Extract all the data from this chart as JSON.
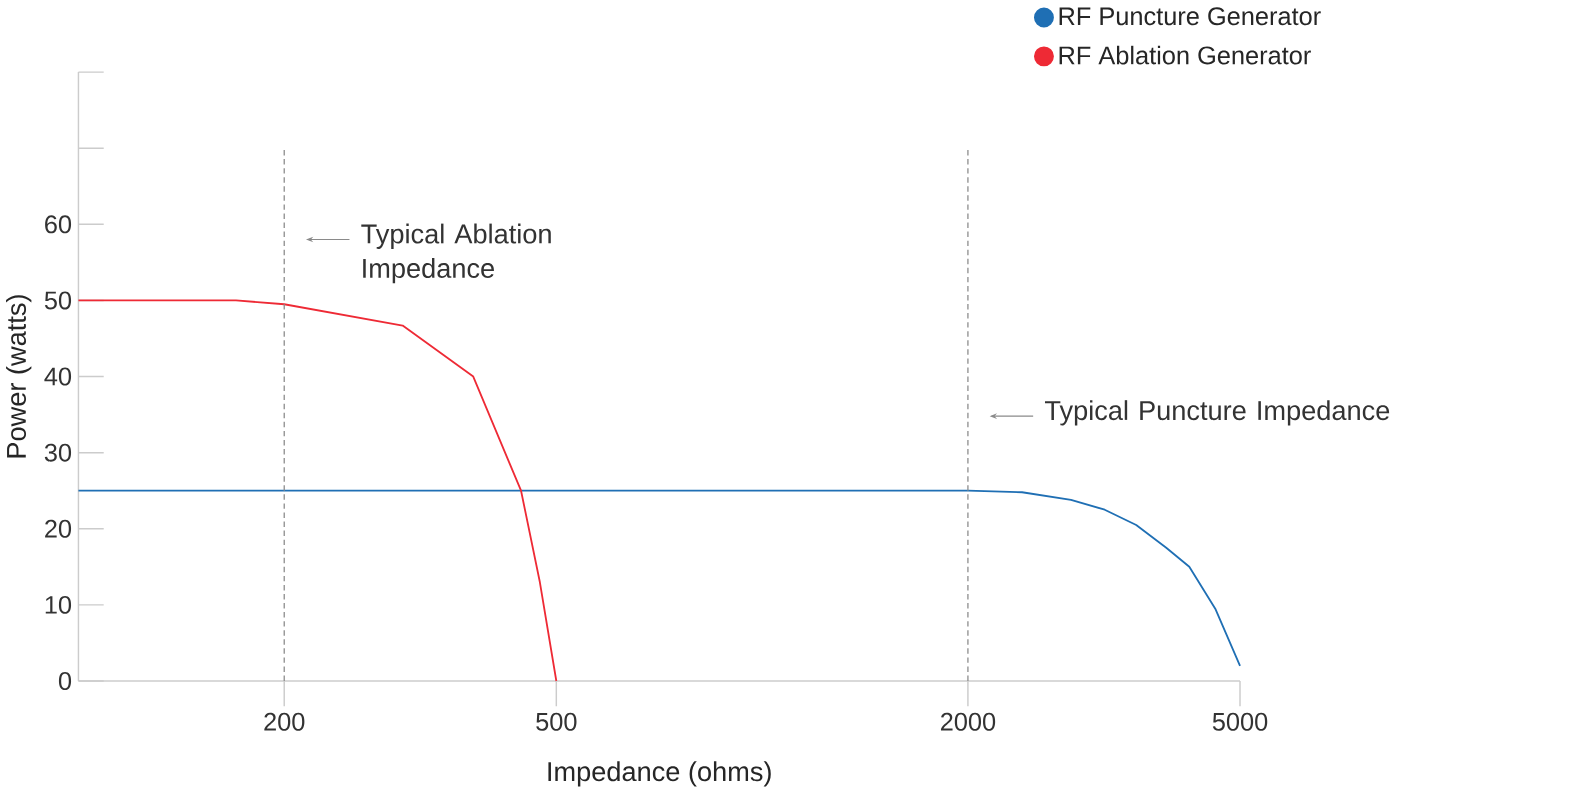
{
  "chart_data": {
    "type": "line",
    "xlabel": "Impedance (ohms)",
    "ylabel": "Power (watts)",
    "log": "x",
    "xlim": [
      100,
      5000
    ],
    "xticks": [
      200,
      500,
      2000,
      5000
    ],
    "ylim": [
      0,
      80
    ],
    "yticks": [
      0,
      10,
      20,
      30,
      40,
      50,
      60,
      {
        "value": 70,
        "label": null
      },
      {
        "value": 80,
        "label": null
      }
    ],
    "series": [
      {
        "name": "RF Puncture Generator",
        "color": "#1f6fb4",
        "x": [
          100,
          500,
          1000,
          2000,
          2400,
          2830,
          3170,
          3525,
          3900,
          4215,
          4600,
          5000
        ],
        "values": [
          25,
          25,
          25,
          25,
          24.8,
          23.8,
          22.5,
          20.5,
          17.5,
          15,
          9.5,
          2
        ]
      },
      {
        "name": "RF Ablation Generator",
        "color": "#ee2a35",
        "x": [
          100,
          170,
          200,
          298,
          378,
          444,
          473,
          500
        ],
        "values": [
          50,
          50,
          49.5,
          46.7,
          40,
          25,
          13,
          0
        ]
      }
    ],
    "ref_lines": [
      {
        "axis": "x",
        "value": 200,
        "label": "Typical Ablation Impedance",
        "color": "#8a8a8a",
        "line_style": "dashed"
      },
      {
        "axis": "x",
        "value": 2000,
        "label": "Typical Puncture Impedance",
        "color": "#8a8a8a",
        "line_style": "dashed"
      }
    ],
    "legend": "top right",
    "marker": "none",
    "line_style": "solid",
    "grid": false
  }
}
